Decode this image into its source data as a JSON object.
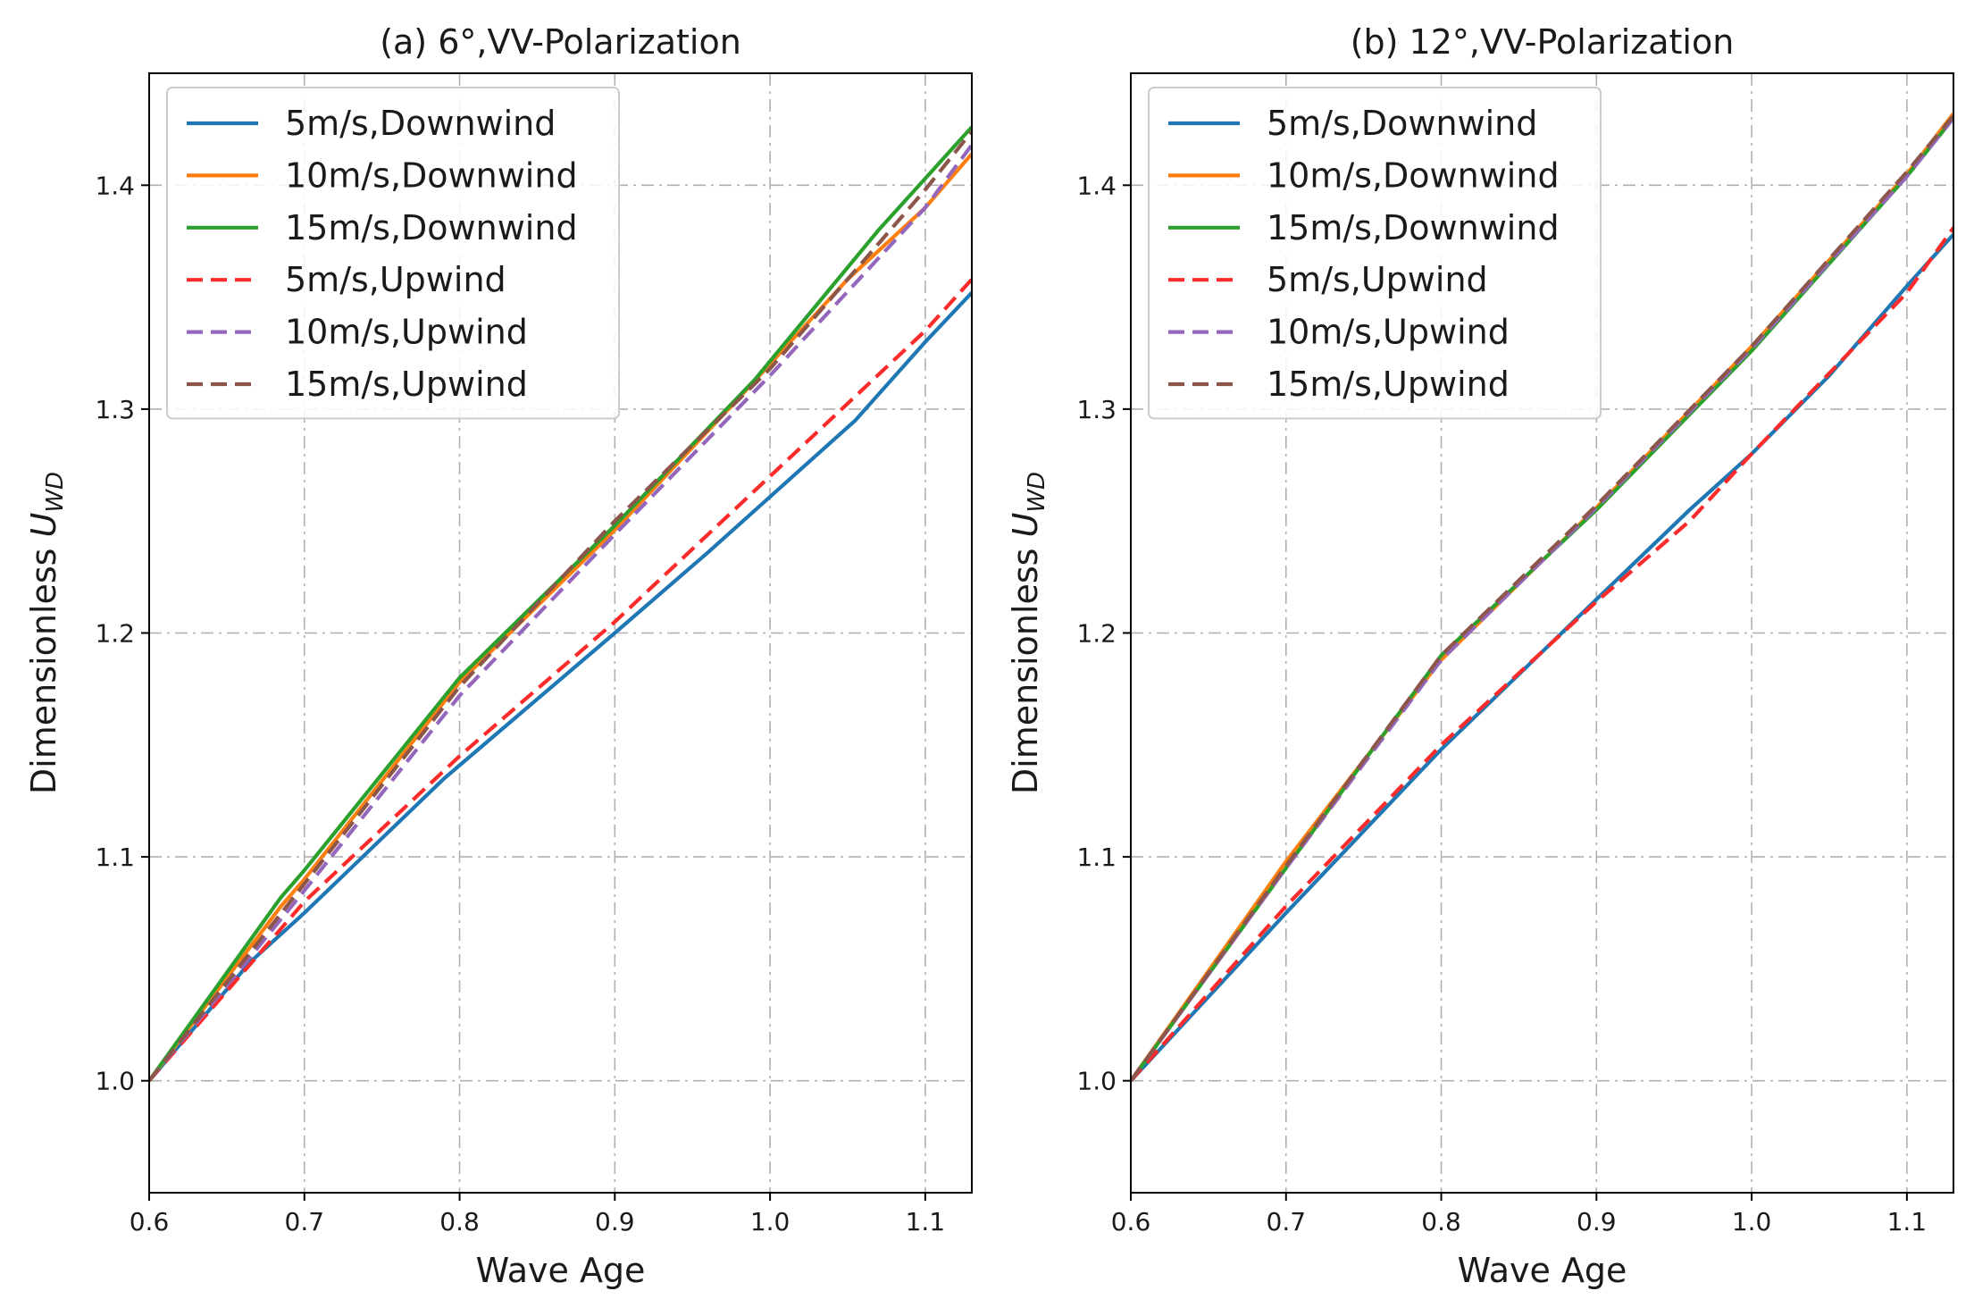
{
  "chart_data": [
    {
      "type": "line",
      "title": "(a) 6°,VV-Polarization",
      "xlabel": "Wave Age",
      "ylabel_prefix": "Dimensionless ",
      "ylabel_symbol": "U",
      "ylabel_subscript": "WD",
      "xlim": [
        0.6,
        1.13
      ],
      "ylim": [
        0.95,
        1.45
      ],
      "xticks": [
        "0.6",
        "0.7",
        "0.8",
        "0.9",
        "1.0",
        "1.1"
      ],
      "yticks": [
        "1.0",
        "1.1",
        "1.2",
        "1.3",
        "1.4"
      ],
      "grid": true,
      "legend_position": "top-left",
      "series": [
        {
          "name": "5m/s,Downwind",
          "color": "#1f77b4",
          "dash": "solid",
          "x": [
            0.6,
            0.665,
            0.7,
            0.79,
            0.9,
            0.96,
            1.055,
            1.1,
            1.13
          ],
          "y": [
            1.0,
            1.053,
            1.075,
            1.135,
            1.2,
            1.236,
            1.295,
            1.33,
            1.352
          ]
        },
        {
          "name": "10m/s,Downwind",
          "color": "#ff7f0e",
          "dash": "solid",
          "x": [
            0.6,
            0.685,
            0.7,
            0.8,
            0.9,
            0.98,
            1.05,
            1.1,
            1.13
          ],
          "y": [
            1.0,
            1.078,
            1.09,
            1.178,
            1.246,
            1.305,
            1.358,
            1.39,
            1.414
          ]
        },
        {
          "name": "15m/s,Downwind",
          "color": "#2ca02c",
          "dash": "solid",
          "x": [
            0.6,
            0.685,
            0.7,
            0.8,
            0.9,
            0.99,
            1.07,
            1.13
          ],
          "y": [
            1.0,
            1.082,
            1.094,
            1.18,
            1.248,
            1.313,
            1.38,
            1.426
          ]
        },
        {
          "name": "5m/s,Upwind",
          "color": "#ff2a2a",
          "dash": "dashed",
          "x": [
            0.6,
            0.65,
            0.7,
            0.8,
            0.9,
            1.0,
            1.1,
            1.13
          ],
          "y": [
            1.0,
            1.04,
            1.08,
            1.145,
            1.205,
            1.27,
            1.335,
            1.358
          ]
        },
        {
          "name": "10m/s,Upwind",
          "color": "#9467bd",
          "dash": "dashed",
          "x": [
            0.6,
            0.7,
            0.8,
            0.9,
            1.0,
            1.1,
            1.13
          ],
          "y": [
            1.0,
            1.085,
            1.172,
            1.244,
            1.315,
            1.39,
            1.418
          ]
        },
        {
          "name": "15m/s,Upwind",
          "color": "#8c564b",
          "dash": "dashed",
          "x": [
            0.6,
            0.7,
            0.8,
            0.9,
            1.0,
            1.1,
            1.13
          ],
          "y": [
            1.0,
            1.088,
            1.176,
            1.25,
            1.318,
            1.398,
            1.424
          ]
        }
      ]
    },
    {
      "type": "line",
      "title": "(b) 12°,VV-Polarization",
      "xlabel": "Wave Age",
      "ylabel_prefix": "Dimensionless ",
      "ylabel_symbol": "U",
      "ylabel_subscript": "WD",
      "xlim": [
        0.6,
        1.13
      ],
      "ylim": [
        0.95,
        1.45
      ],
      "xticks": [
        "0.6",
        "0.7",
        "0.8",
        "0.9",
        "1.0",
        "1.1"
      ],
      "yticks": [
        "1.0",
        "1.1",
        "1.2",
        "1.3",
        "1.4"
      ],
      "grid": true,
      "legend_position": "top-left",
      "series": [
        {
          "name": "5m/s,Downwind",
          "color": "#1f77b4",
          "dash": "solid",
          "x": [
            0.6,
            0.7,
            0.8,
            0.9,
            0.96,
            1.0,
            1.05,
            1.1,
            1.13
          ],
          "y": [
            1.0,
            1.075,
            1.148,
            1.215,
            1.255,
            1.28,
            1.315,
            1.355,
            1.378
          ]
        },
        {
          "name": "10m/s,Downwind",
          "color": "#ff7f0e",
          "dash": "solid",
          "x": [
            0.6,
            0.7,
            0.8,
            0.9,
            1.0,
            1.1,
            1.13
          ],
          "y": [
            1.0,
            1.098,
            1.188,
            1.256,
            1.328,
            1.405,
            1.432
          ]
        },
        {
          "name": "15m/s,Downwind",
          "color": "#2ca02c",
          "dash": "solid",
          "x": [
            0.6,
            0.7,
            0.8,
            0.9,
            1.0,
            1.1,
            1.13
          ],
          "y": [
            1.0,
            1.095,
            1.19,
            1.255,
            1.326,
            1.404,
            1.43
          ]
        },
        {
          "name": "5m/s,Upwind",
          "color": "#ff2a2a",
          "dash": "dashed",
          "x": [
            0.6,
            0.7,
            0.8,
            0.9,
            0.96,
            1.0,
            1.1,
            1.13
          ],
          "y": [
            1.0,
            1.078,
            1.15,
            1.214,
            1.25,
            1.28,
            1.352,
            1.381
          ]
        },
        {
          "name": "10m/s,Upwind",
          "color": "#9467bd",
          "dash": "dashed",
          "x": [
            0.6,
            0.7,
            0.8,
            0.9,
            1.0,
            1.1,
            1.13
          ],
          "y": [
            1.0,
            1.095,
            1.188,
            1.256,
            1.327,
            1.404,
            1.43
          ]
        },
        {
          "name": "15m/s,Upwind",
          "color": "#8c564b",
          "dash": "dashed",
          "x": [
            0.6,
            0.7,
            0.8,
            0.9,
            1.0,
            1.1,
            1.13
          ],
          "y": [
            1.0,
            1.096,
            1.19,
            1.257,
            1.328,
            1.406,
            1.431
          ]
        }
      ]
    }
  ]
}
